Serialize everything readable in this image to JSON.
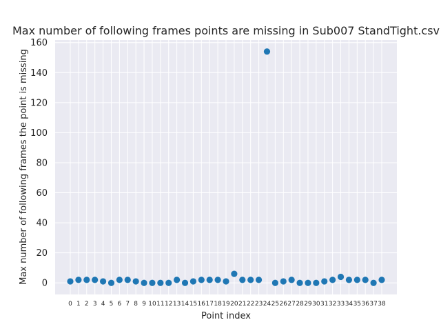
{
  "chart_data": {
    "type": "scatter",
    "title": "Max number of following frames points are missing in Sub007 StandTight.csv",
    "xlabel": "Point index",
    "ylabel": "Max number of following frames the point is missing",
    "categories": [
      "0",
      "1",
      "2",
      "3",
      "4",
      "5",
      "6",
      "7",
      "8",
      "9",
      "10",
      "11",
      "12",
      "13",
      "14",
      "15",
      "16",
      "17",
      "18",
      "19",
      "20",
      "21",
      "22",
      "23",
      "24",
      "25",
      "26",
      "27",
      "28",
      "29",
      "30",
      "31",
      "32",
      "33",
      "34",
      "35",
      "36",
      "37",
      "38"
    ],
    "values": [
      1,
      2,
      2,
      2,
      1,
      0,
      2,
      2,
      1,
      0,
      0,
      0,
      0,
      2,
      0,
      1,
      2,
      2,
      2,
      1,
      6,
      2,
      2,
      2,
      154,
      0,
      1,
      2,
      0,
      0,
      0,
      1,
      2,
      4,
      2,
      2,
      2,
      0,
      2
    ],
    "ylim": [
      -7.7,
      161.7
    ],
    "yticks": [
      0,
      20,
      40,
      60,
      80,
      100,
      120,
      140,
      160
    ],
    "grid": true,
    "colors": {
      "background": "#eaeaf2",
      "grid": "#ffffff",
      "marker": "#1f77b4"
    }
  }
}
